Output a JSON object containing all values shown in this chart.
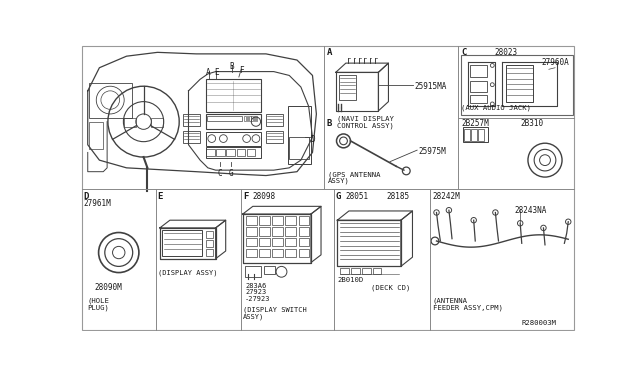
{
  "bg_color": "#ffffff",
  "fig_width": 6.4,
  "fig_height": 3.72,
  "dpi": 100,
  "line_color": "#404040",
  "text_color": "#1a1a1a",
  "parts": {
    "25915MA": "25915MA",
    "navi_display_1": "(NAVI DISPLAY",
    "navi_display_2": "CONTROL ASSY)",
    "28023": "28023",
    "27960A": "27960A",
    "aux_audio": "(AUX AUDIO JACK)",
    "25975M": "25975M",
    "gps_1": "(GPS ANTENNA",
    "gps_2": "ASSY)",
    "2B257M": "2B257M",
    "2B310": "2B310",
    "27961M": "27961M",
    "28090M": "28090M",
    "hole_1": "(HOLE",
    "hole_2": "PLUG)",
    "28098": "28098",
    "283A6": "283A6",
    "27923a": "27923",
    "27923b": "-27923",
    "display_switch_1": "(DISPLAY SWITCH",
    "display_switch_2": "ASSY)",
    "display_assy": "(DISPLAY ASSY)",
    "28051": "28051",
    "28185": "28185",
    "2B010D": "2B010D",
    "deck_cd": "(DECK CD)",
    "28242M": "28242M",
    "28243NA": "28243NA",
    "antenna_1": "(ANTENNA",
    "antenna_2": "FEEDER ASSY,CPM)",
    "R280003M": "R280003M"
  },
  "labels": [
    "A",
    "B",
    "C",
    "D",
    "E",
    "F",
    "G"
  ]
}
